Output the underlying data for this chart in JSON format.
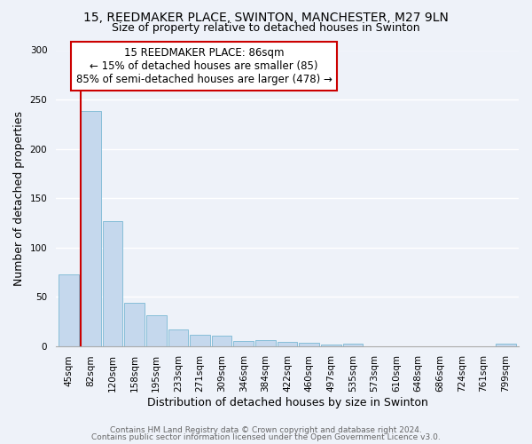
{
  "title": "15, REEDMAKER PLACE, SWINTON, MANCHESTER, M27 9LN",
  "subtitle": "Size of property relative to detached houses in Swinton",
  "xlabel": "Distribution of detached houses by size in Swinton",
  "ylabel": "Number of detached properties",
  "bar_labels": [
    "45sqm",
    "82sqm",
    "120sqm",
    "158sqm",
    "195sqm",
    "233sqm",
    "271sqm",
    "309sqm",
    "346sqm",
    "384sqm",
    "422sqm",
    "460sqm",
    "497sqm",
    "535sqm",
    "573sqm",
    "610sqm",
    "648sqm",
    "686sqm",
    "724sqm",
    "761sqm",
    "799sqm"
  ],
  "bar_values": [
    73,
    238,
    127,
    44,
    31,
    17,
    11,
    10,
    5,
    6,
    4,
    3,
    1,
    2,
    0,
    0,
    0,
    0,
    0,
    0,
    2
  ],
  "bar_color": "#c5d8ed",
  "bar_edge_color": "#7ab8d4",
  "vline_x_index": 1,
  "vline_color": "#cc0000",
  "annotation_text": "15 REEDMAKER PLACE: 86sqm\n← 15% of detached houses are smaller (85)\n85% of semi-detached houses are larger (478) →",
  "annotation_box_color": "#ffffff",
  "annotation_box_edge_color": "#cc0000",
  "ylim": [
    0,
    300
  ],
  "yticks": [
    0,
    50,
    100,
    150,
    200,
    250,
    300
  ],
  "footer_line1": "Contains HM Land Registry data © Crown copyright and database right 2024.",
  "footer_line2": "Contains public sector information licensed under the Open Government Licence v3.0.",
  "background_color": "#eef2f9",
  "plot_bg_color": "#eef2f9",
  "grid_color": "#ffffff",
  "title_fontsize": 10,
  "subtitle_fontsize": 9,
  "axis_label_fontsize": 9,
  "tick_fontsize": 7.5,
  "annotation_fontsize": 8.5,
  "footer_fontsize": 6.5
}
